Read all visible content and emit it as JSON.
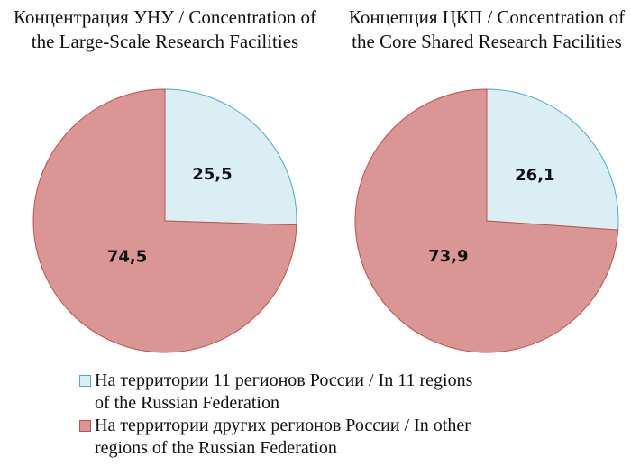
{
  "chart_data": [
    {
      "type": "pie",
      "title": "Концентрация УНУ / Concentration of the Large-Scale Research Facilities",
      "categories": [
        "На территории 11 регионов России / In 11 regions of the Russian Federation",
        "На территории других регионов России / In other regions of the Russian Federation"
      ],
      "values": [
        25.5,
        74.5
      ],
      "value_labels": [
        "25,5",
        "74,5"
      ],
      "colors": [
        "#daeef3",
        "#d99694"
      ],
      "legend": "bottom"
    },
    {
      "type": "pie",
      "title": "Концепция ЦКП / Concentration of the Core Shared Research Facilities",
      "categories": [
        "На территории 11 регионов России / In 11 regions of the Russian Federation",
        "На территории других регионов России / In other regions of the Russian Federation"
      ],
      "values": [
        26.1,
        73.9
      ],
      "value_labels": [
        "26,1",
        "73,9"
      ],
      "colors": [
        "#daeef3",
        "#d99694"
      ]
    }
  ]
}
